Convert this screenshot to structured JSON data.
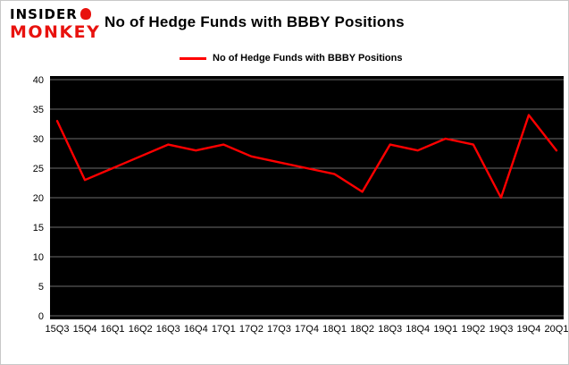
{
  "header": {
    "brand_line1": "INSIDER",
    "brand_line2": "MONKEY",
    "title": "No of Hedge Funds with BBBY Positions"
  },
  "legend": {
    "label": "No of Hedge Funds with BBBY Positions",
    "color": "#ff0000"
  },
  "icons": {
    "monkey_icon": "monkey-head",
    "brand_red": "#e8120e"
  },
  "chart_data": {
    "type": "line",
    "title": "No of Hedge Funds with BBBY Positions",
    "categories": [
      "15Q3",
      "15Q4",
      "16Q1",
      "16Q2",
      "16Q3",
      "16Q4",
      "17Q1",
      "17Q2",
      "17Q3",
      "17Q4",
      "18Q1",
      "18Q2",
      "18Q3",
      "18Q4",
      "19Q1",
      "19Q2",
      "19Q3",
      "19Q4",
      "20Q1"
    ],
    "values": [
      33,
      23,
      25,
      27,
      29,
      28,
      29,
      27,
      26,
      25,
      24,
      21,
      29,
      28,
      30,
      29,
      20,
      34,
      28
    ],
    "xlabel": "",
    "ylabel": "",
    "ylim": [
      0,
      40
    ],
    "yticks": [
      0,
      5,
      10,
      15,
      20,
      25,
      30,
      35,
      40
    ],
    "grid": "on",
    "legend_position": "top",
    "line_color": "#ff0000",
    "plot_bg": "#000000",
    "grid_color": "#ffffff"
  }
}
